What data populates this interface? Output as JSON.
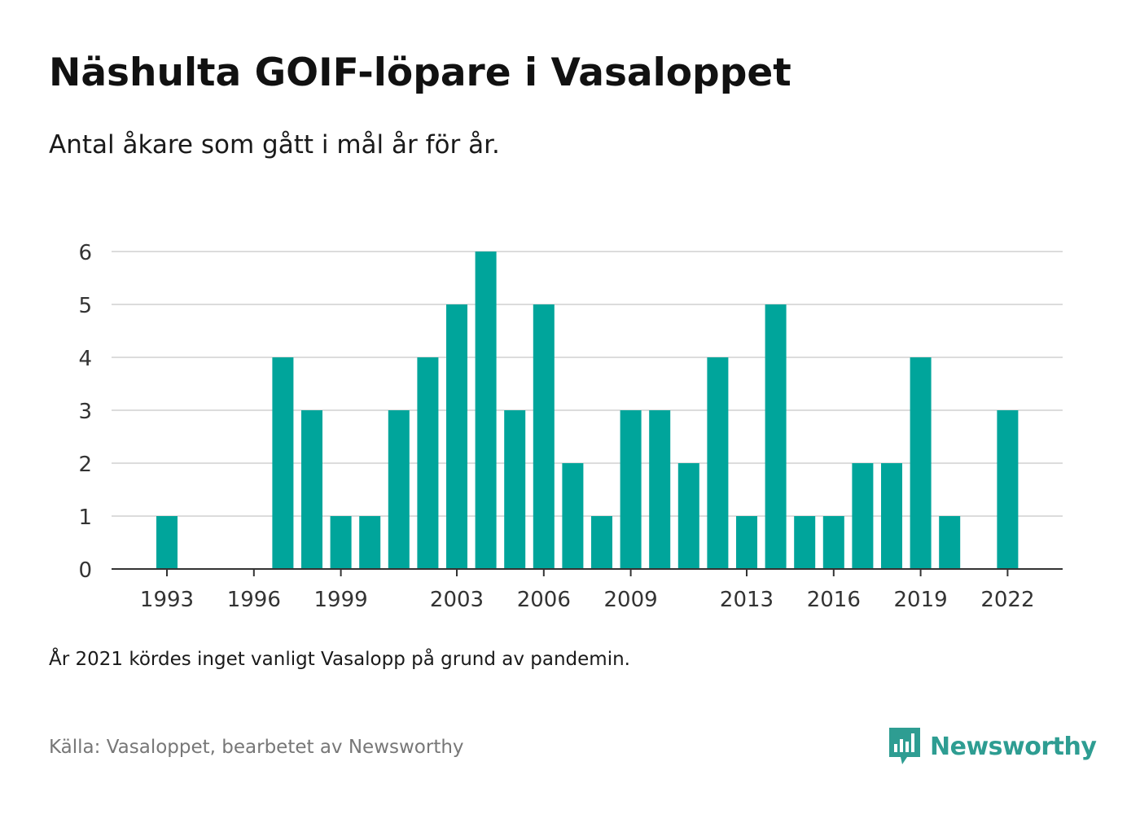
{
  "title": "Näshulta GOIF-löpare i Vasaloppet",
  "subtitle": "Antal åkare som gått i mål år för år.",
  "note": "År 2021 kördes inget vanligt Vasalopp på grund av pandemin.",
  "source": "Källa: Vasaloppet, bearbetet av Newsworthy",
  "brand": {
    "name": "Newsworthy",
    "icon": "newsworthy-logo-icon",
    "color": "#2e9d92"
  },
  "chart_data": {
    "type": "bar",
    "title": "Näshulta GOIF-löpare i Vasaloppet",
    "subtitle": "Antal åkare som gått i mål år för år.",
    "xlabel": "",
    "ylabel": "",
    "bar_color": "#00a59b",
    "grid": true,
    "ylim": [
      0,
      6
    ],
    "y_ticks": [
      0,
      1,
      2,
      3,
      4,
      5,
      6
    ],
    "x_tick_labels": [
      "1993",
      "1996",
      "1999",
      "2003",
      "2006",
      "2009",
      "2013",
      "2016",
      "2019",
      "2022"
    ],
    "categories": [
      1993,
      1994,
      1995,
      1996,
      1997,
      1998,
      1999,
      2000,
      2001,
      2002,
      2003,
      2004,
      2005,
      2006,
      2007,
      2008,
      2009,
      2010,
      2011,
      2012,
      2013,
      2014,
      2015,
      2016,
      2017,
      2018,
      2019,
      2020,
      2021,
      2022
    ],
    "values": [
      1,
      0,
      0,
      0,
      4,
      3,
      1,
      1,
      3,
      4,
      5,
      6,
      3,
      5,
      2,
      1,
      3,
      3,
      2,
      4,
      1,
      5,
      1,
      1,
      2,
      2,
      4,
      1,
      0,
      3
    ]
  }
}
